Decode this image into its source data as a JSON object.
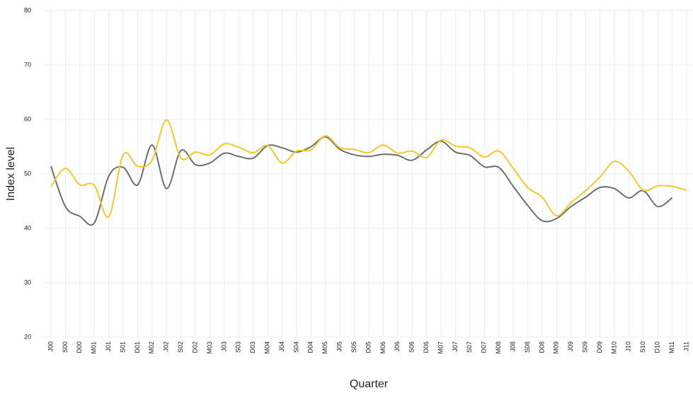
{
  "chart_data": {
    "type": "line",
    "x_label": "Quarter",
    "y_label": "Index level",
    "categories": [
      "J00",
      "S00",
      "D00",
      "M01",
      "J01",
      "S01",
      "D01",
      "M02",
      "J02",
      "S02",
      "D02",
      "M03",
      "J03",
      "S03",
      "D03",
      "M04",
      "J04",
      "S04",
      "D04",
      "M05",
      "J05",
      "S05",
      "D05",
      "M06",
      "J06",
      "S06",
      "D06",
      "M07",
      "J07",
      "S07",
      "D07",
      "M08",
      "J08",
      "S08",
      "D08",
      "M09",
      "J09",
      "S09",
      "D09",
      "M10",
      "J10",
      "S10",
      "D10",
      "M11",
      "J11"
    ],
    "series": [
      {
        "color": "#6e6e6e",
        "values": [
          51.4,
          44.0,
          42.2,
          41.0,
          49.6,
          51.2,
          48.0,
          55.3,
          47.3,
          54.3,
          51.7,
          52.0,
          53.8,
          53.2,
          52.9,
          55.2,
          54.8,
          54.0,
          55.0,
          56.8,
          54.5,
          53.5,
          53.2,
          53.6,
          53.4,
          52.5,
          54.4,
          56.0,
          54.0,
          53.4,
          51.3,
          51.2,
          47.7,
          44.2,
          41.4,
          41.8,
          44.0,
          45.7,
          47.5,
          47.3,
          45.6,
          46.9,
          44.0,
          45.6,
          null
        ]
      },
      {
        "color": "#f5c82a",
        "values": [
          47.7,
          51.0,
          48.0,
          47.9,
          42.1,
          53.5,
          51.4,
          52.5,
          59.9,
          52.9,
          54.0,
          53.5,
          55.5,
          54.9,
          53.9,
          55.2,
          52.0,
          54.2,
          54.4,
          57.0,
          54.8,
          54.5,
          53.9,
          55.3,
          53.8,
          54.2,
          53.0,
          56.2,
          55.1,
          54.8,
          53.1,
          54.2,
          51.0,
          47.5,
          45.7,
          42.3,
          44.7,
          46.9,
          49.4,
          52.3,
          50.5,
          47.0,
          47.8,
          47.7,
          47.0
        ]
      }
    ],
    "ylim": [
      20,
      80
    ],
    "yticks": [
      20,
      30,
      40,
      50,
      60,
      70,
      80
    ],
    "grid": true
  }
}
